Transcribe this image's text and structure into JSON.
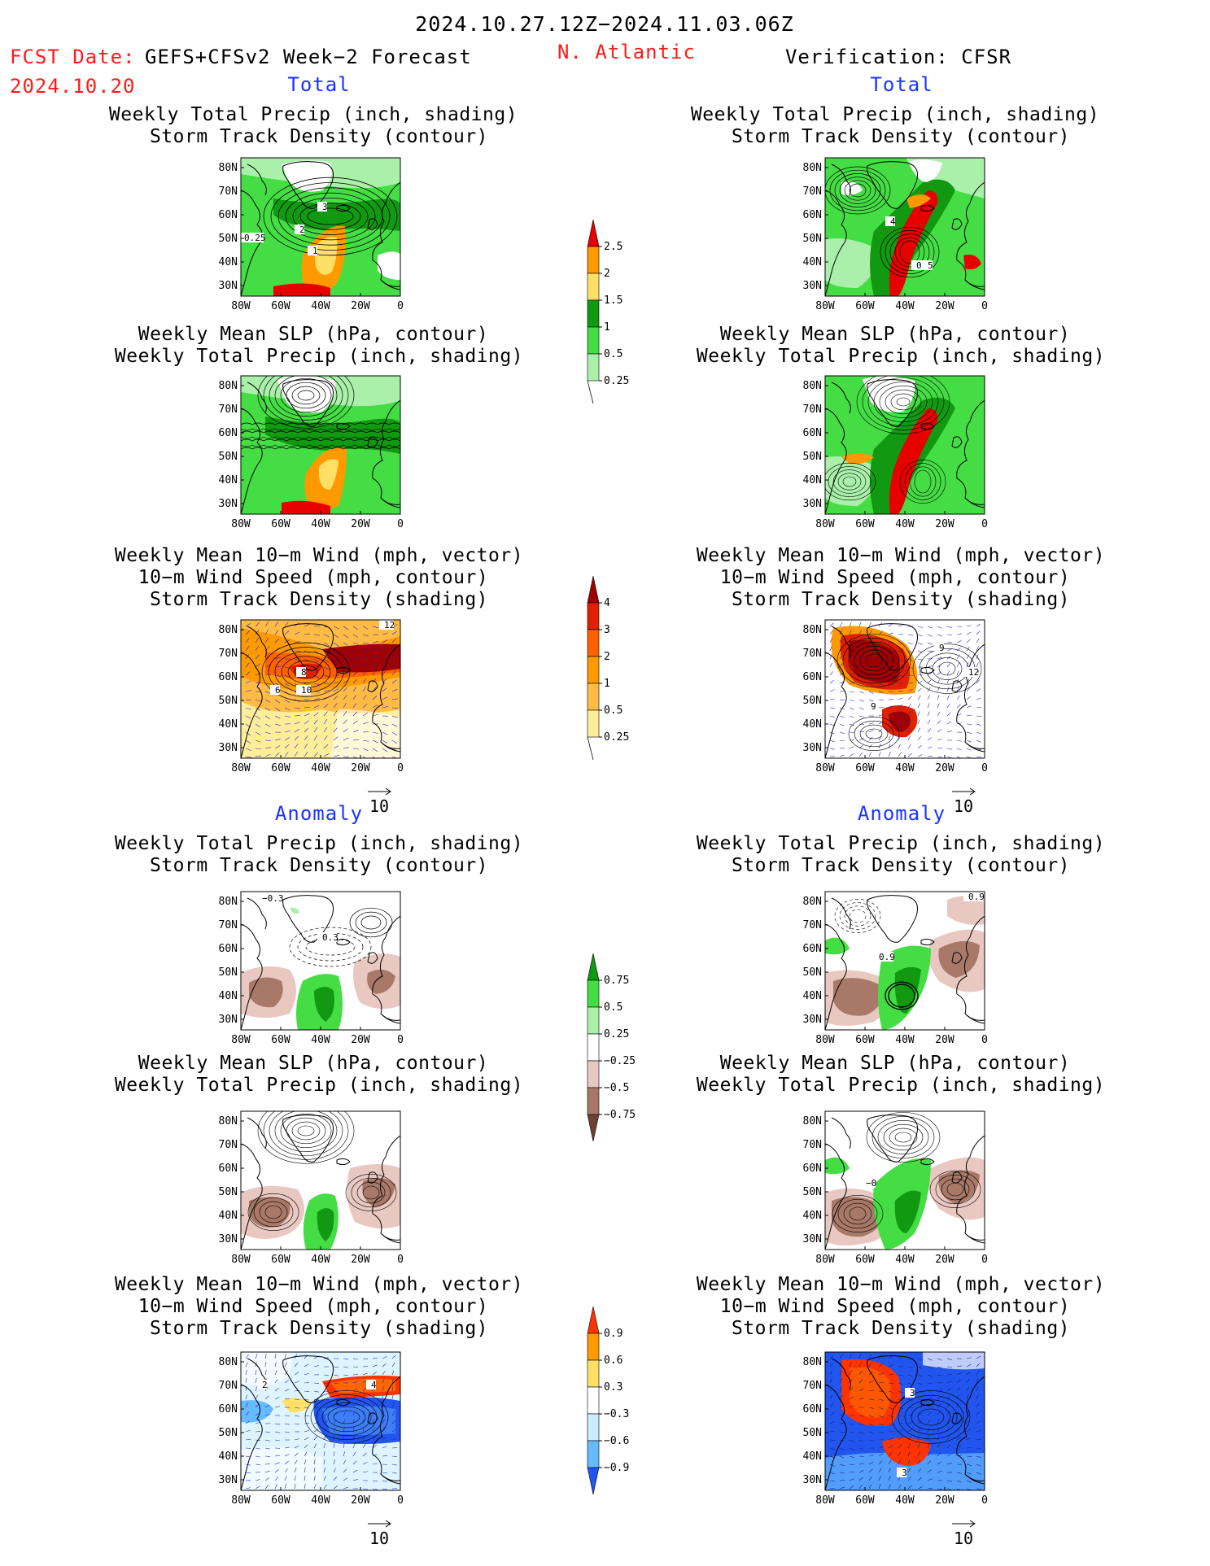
{
  "header": {
    "date_range": "2024.10.27.12Z−2024.11.03.06Z",
    "fcst_date_label": "FCST Date:",
    "forecast_product": "GEFS+CFSv2 Week−2 Forecast",
    "fcst_date": "2024.10.20",
    "region": "N. Atlantic",
    "verification": "Verification: CFSR"
  },
  "sections": {
    "total": "Total",
    "anomaly": "Anomaly"
  },
  "panel_titles": {
    "precip_track": [
      "Weekly Total Precip (inch, shading)",
      "Storm Track Density (contour)"
    ],
    "slp_precip": [
      "Weekly Mean SLP (hPa, contour)",
      "Weekly Total Precip (inch, shading)"
    ],
    "wind_track": [
      "Weekly Mean 10−m Wind (mph, vector)",
      "10−m Wind Speed (mph, contour)",
      "Storm Track Density (shading)"
    ]
  },
  "axes": {
    "lat_ticks": [
      "80N",
      "70N",
      "60N",
      "50N",
      "40N",
      "30N"
    ],
    "lon_ticks": [
      "80W",
      "60W",
      "40W",
      "20W",
      "0"
    ]
  },
  "vector_reference": "10",
  "colorbars": {
    "precip_total": {
      "labels": [
        "2.5",
        "2",
        "1.5",
        "1",
        "0.5",
        "0.25"
      ],
      "colors": [
        "#e60000",
        "#ff9900",
        "#ffe066",
        "#119911",
        "#44dd44",
        "#aaf0aa"
      ]
    },
    "track_total": {
      "labels": [
        "4",
        "3",
        "2",
        "1",
        "0.5",
        "0.25"
      ],
      "colors": [
        "#a00000",
        "#e02000",
        "#ff6000",
        "#ff9900",
        "#ffbb44",
        "#ffee99"
      ]
    },
    "precip_anom": {
      "labels": [
        "0.75",
        "0.5",
        "0.25",
        "−0.25",
        "−0.5",
        "−0.75"
      ],
      "colors": [
        "#119911",
        "#44dd44",
        "#aaf0aa",
        "#ffffff",
        "#e8c8c0",
        "#a87868",
        "#6e4232"
      ]
    },
    "track_anom": {
      "labels": [
        "0.9",
        "0.6",
        "0.3",
        "−0.3",
        "−0.6",
        "−0.9"
      ],
      "colors": [
        "#ff3300",
        "#ff9900",
        "#ffe066",
        "#ffffff",
        "#c8eeff",
        "#66bbff",
        "#2255ee"
      ]
    }
  },
  "contour_labels": {
    "fcst_track_total": [
      "3",
      "2",
      "1",
      "0.25"
    ],
    "obs_track_total": [
      "4",
      "0.5",
      "5"
    ],
    "fcst_wind_total": [
      "12",
      "8",
      "6",
      "10"
    ],
    "obs_wind_total": [
      "9",
      "12",
      "9"
    ],
    "fcst_track_anom": [
      "−0.3",
      "0.3"
    ],
    "obs_track_anom": [
      "0.9",
      "0.9"
    ],
    "obs_slp_anom": [
      "−0"
    ],
    "fcst_wind_anom": [
      "2",
      "4"
    ],
    "obs_wind_anom": [
      "3",
      "3"
    ]
  }
}
